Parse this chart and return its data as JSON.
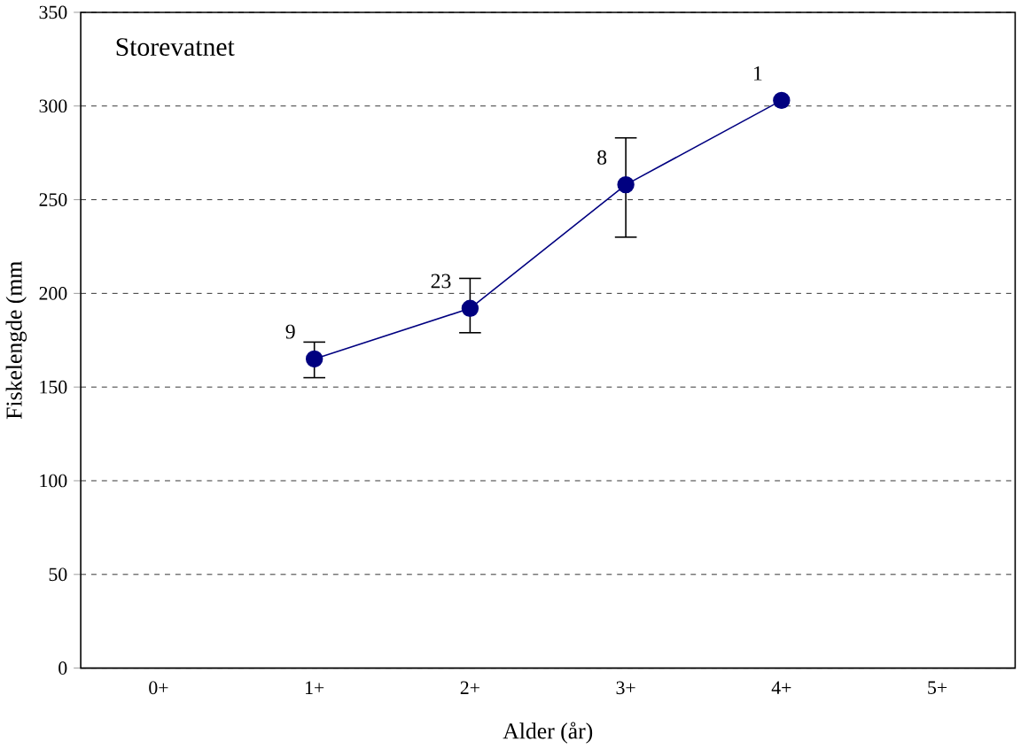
{
  "chart_data": {
    "type": "line",
    "title": "Storevatnet",
    "xlabel": "Alder (år)",
    "ylabel": "Fiskelengde (mm",
    "categories": [
      "0+",
      "1+",
      "2+",
      "3+",
      "4+",
      "5+"
    ],
    "series": [
      {
        "color": "#000080",
        "values": [
          null,
          165,
          192,
          258,
          303,
          null
        ],
        "errors": [
          null,
          [
            155,
            174
          ],
          [
            179,
            208
          ],
          [
            230,
            283
          ],
          null,
          null
        ]
      }
    ],
    "ylim": [
      0,
      350
    ],
    "yticks": [
      0,
      50,
      100,
      150,
      200,
      250,
      300,
      350
    ],
    "grid": "y",
    "marker": "circle",
    "line_style": "solid",
    "annotations": [
      {
        "text": "9",
        "x": "1+",
        "y": 165
      },
      {
        "text": "23",
        "x": "2+",
        "y": 192
      },
      {
        "text": "8",
        "x": "3+",
        "y": 258
      },
      {
        "text": "1",
        "x": "4+",
        "y": 303
      }
    ]
  }
}
